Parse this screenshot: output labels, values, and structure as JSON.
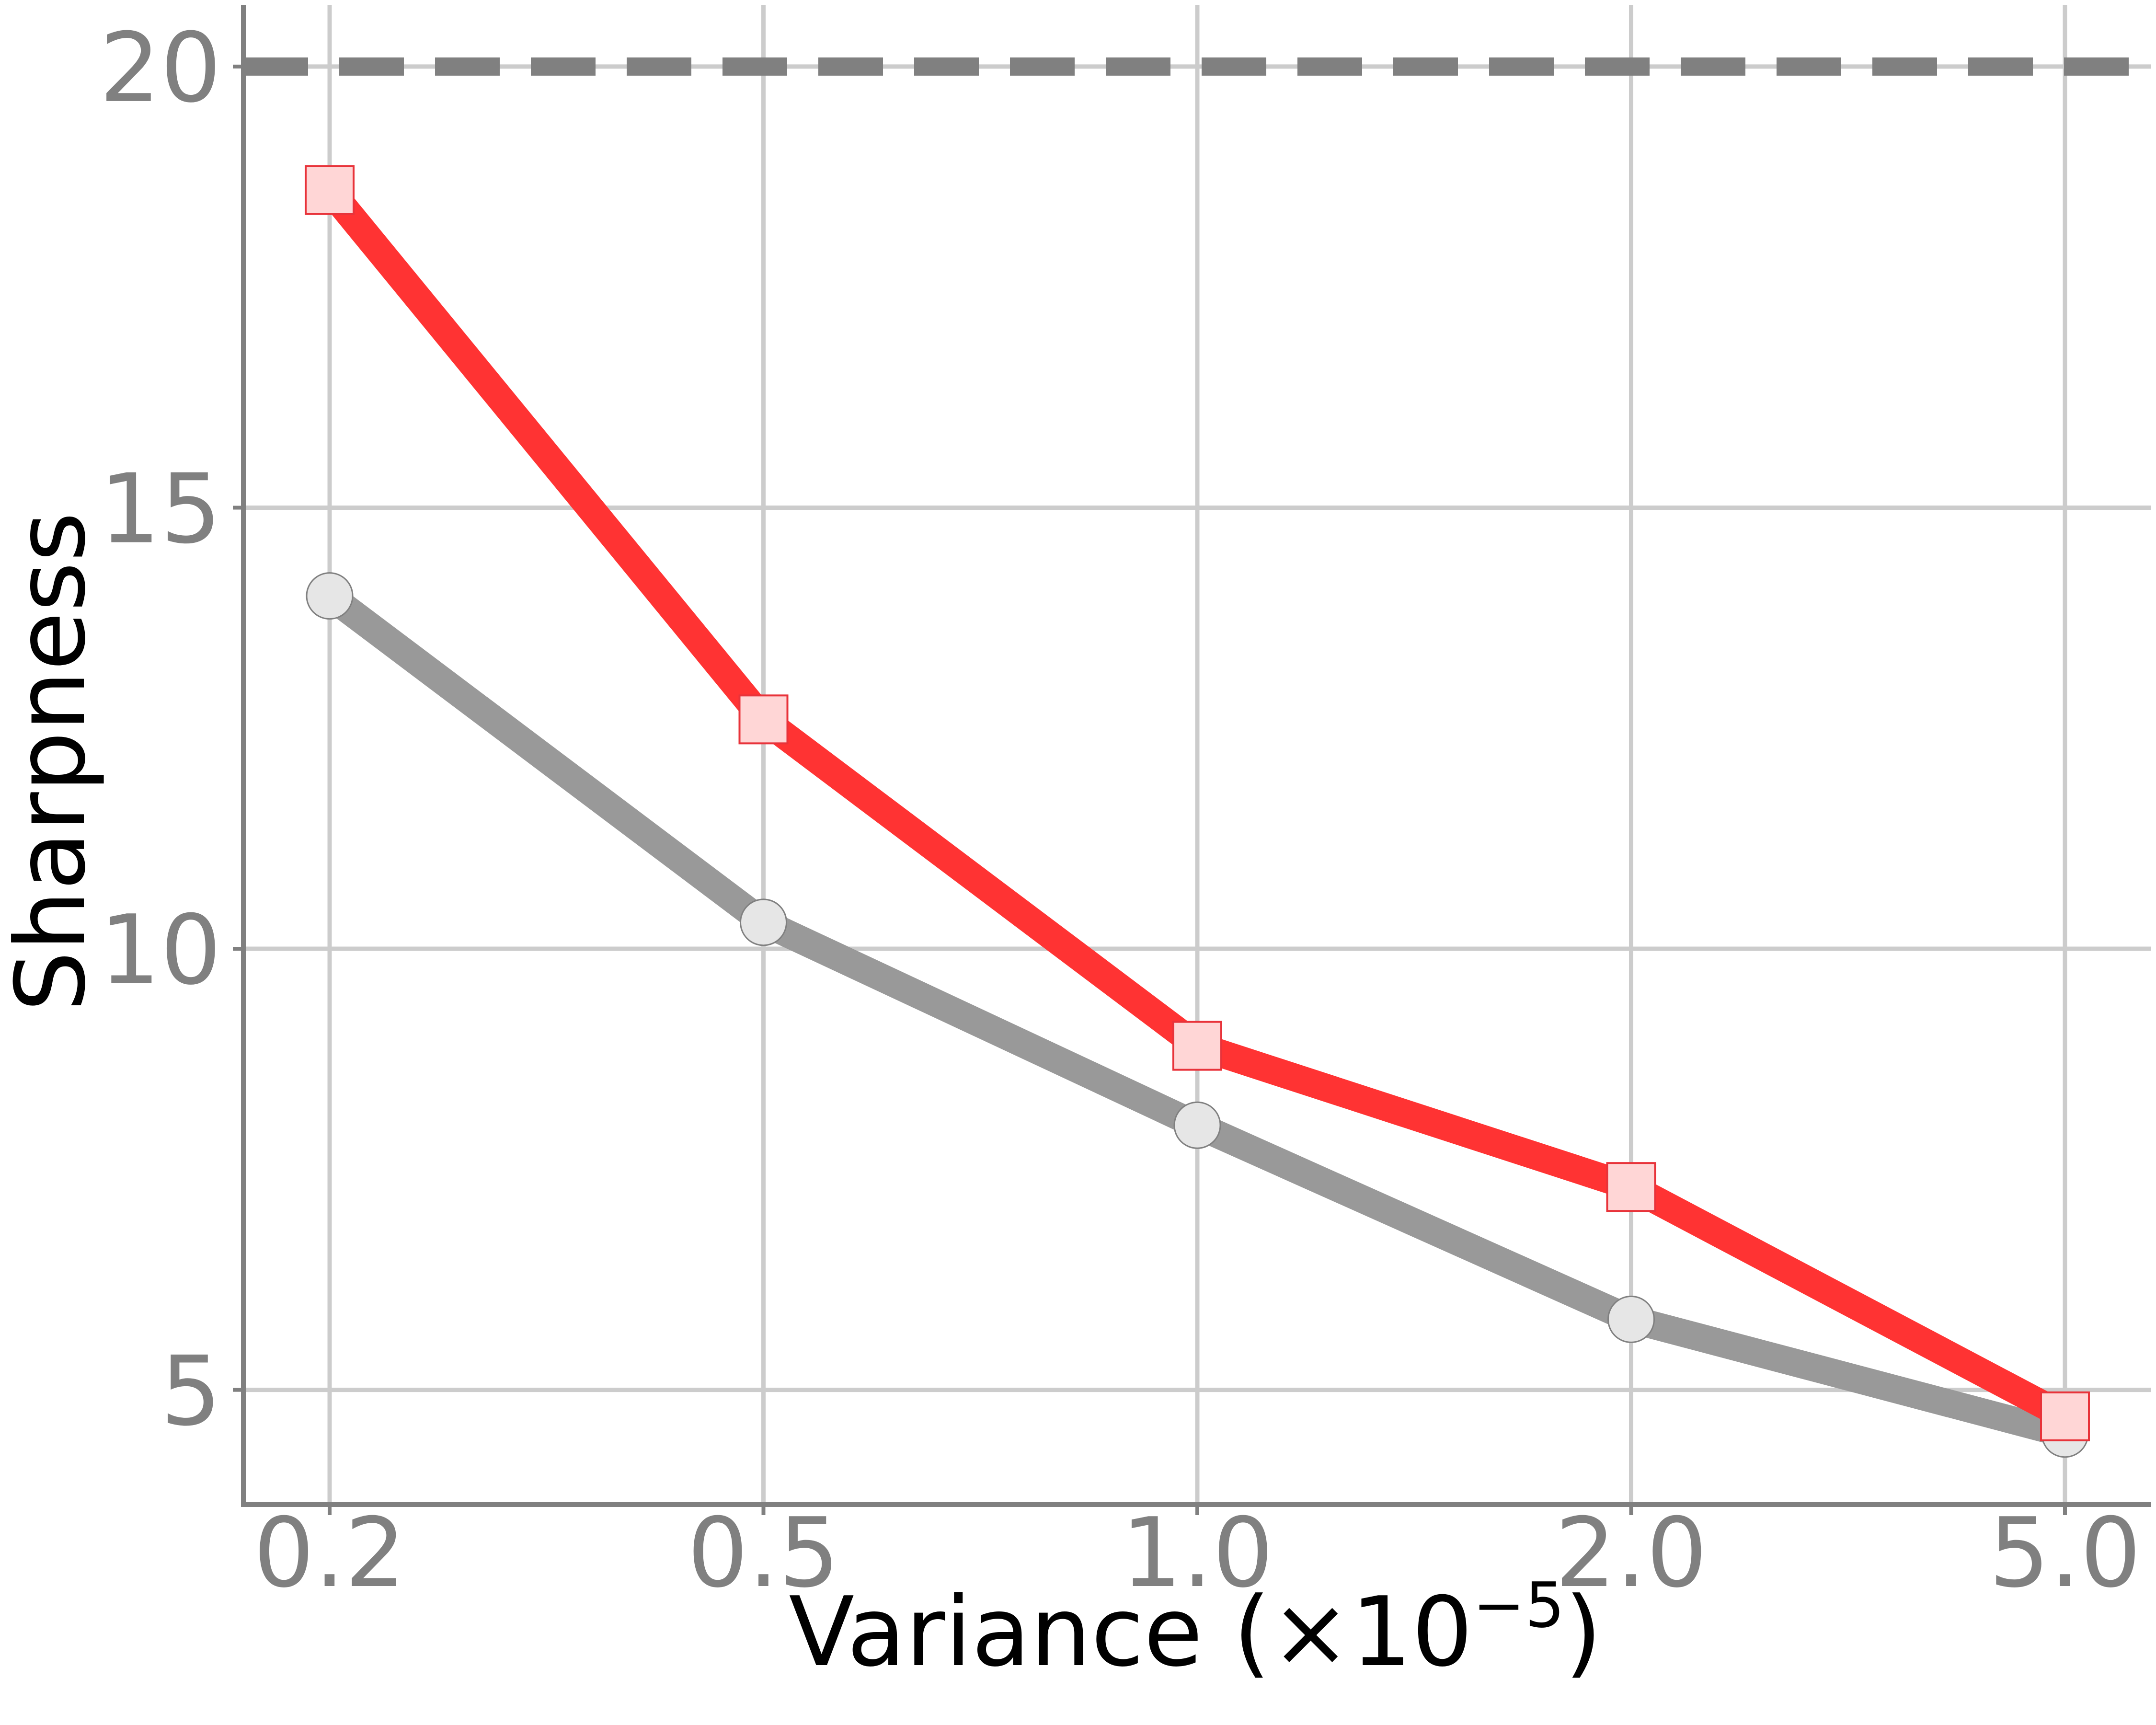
{
  "chart_data": {
    "type": "line",
    "xlabel": "Variance (×10",
    "xlabel_exponent": "−5",
    "xlabel_close": ")",
    "ylabel": "Sharpness",
    "categories": [
      "0.2",
      "0.5",
      "1.0",
      "2.0",
      "5.0"
    ],
    "x_scale": "categorical (evenly spaced)",
    "ylim": [
      3.7,
      20.7
    ],
    "yticks": [
      5,
      10,
      15,
      20
    ],
    "grid": true,
    "legend": "none",
    "reference_line": {
      "y": 20,
      "style": "dashed",
      "color": "#808080"
    },
    "series": [
      {
        "values": [
          14.0,
          10.3,
          8.0,
          5.8,
          4.5
        ],
        "color": "#999999",
        "marker": "circle",
        "marker_fill": "#e6e6e6",
        "marker_edge": "#808080"
      },
      {
        "values": [
          18.6,
          12.6,
          8.9,
          7.3,
          4.7
        ],
        "color": "#ff3333",
        "marker": "square",
        "marker_fill": "#ffd6d6",
        "marker_edge": "#e8333a"
      }
    ]
  }
}
